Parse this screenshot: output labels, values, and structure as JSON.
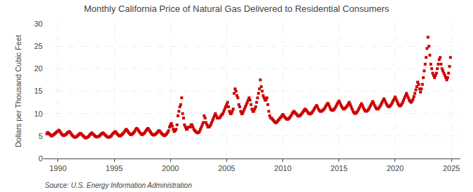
{
  "chart_data": {
    "type": "scatter",
    "title": "Monthly California Price of Natural Gas Delivered to Residential Consumers",
    "ylabel": "Dollars per Thousand Cubic Feet",
    "annotations": [
      "Source: U.S. Energy Information Administration"
    ],
    "color": "#cc0000",
    "marker": "square",
    "grid": true,
    "xlim": [
      1988.7,
      2025.8
    ],
    "ylim": [
      0,
      30
    ],
    "xticks": [
      1990,
      1995,
      2000,
      2005,
      2010,
      2015,
      2020,
      2025
    ],
    "yticks": [
      0,
      5,
      10,
      15,
      20,
      25,
      30
    ],
    "x": [
      1989.0,
      1989.083,
      1989.167,
      1989.25,
      1989.333,
      1989.417,
      1989.5,
      1989.583,
      1989.667,
      1989.75,
      1989.833,
      1989.917,
      1990.0,
      1990.083,
      1990.167,
      1990.25,
      1990.333,
      1990.417,
      1990.5,
      1990.583,
      1990.667,
      1990.75,
      1990.833,
      1990.917,
      1991.0,
      1991.083,
      1991.167,
      1991.25,
      1991.333,
      1991.417,
      1991.5,
      1991.583,
      1991.667,
      1991.75,
      1991.833,
      1991.917,
      1992.0,
      1992.083,
      1992.167,
      1992.25,
      1992.333,
      1992.417,
      1992.5,
      1992.583,
      1992.667,
      1992.75,
      1992.833,
      1992.917,
      1993.0,
      1993.083,
      1993.167,
      1993.25,
      1993.333,
      1993.417,
      1993.5,
      1993.583,
      1993.667,
      1993.75,
      1993.833,
      1993.917,
      1994.0,
      1994.083,
      1994.167,
      1994.25,
      1994.333,
      1994.417,
      1994.5,
      1994.583,
      1994.667,
      1994.75,
      1994.833,
      1994.917,
      1995.0,
      1995.083,
      1995.167,
      1995.25,
      1995.333,
      1995.417,
      1995.5,
      1995.583,
      1995.667,
      1995.75,
      1995.833,
      1995.917,
      1996.0,
      1996.083,
      1996.167,
      1996.25,
      1996.333,
      1996.417,
      1996.5,
      1996.583,
      1996.667,
      1996.75,
      1996.833,
      1996.917,
      1997.0,
      1997.083,
      1997.167,
      1997.25,
      1997.333,
      1997.417,
      1997.5,
      1997.583,
      1997.667,
      1997.75,
      1997.833,
      1997.917,
      1998.0,
      1998.083,
      1998.167,
      1998.25,
      1998.333,
      1998.417,
      1998.5,
      1998.583,
      1998.667,
      1998.75,
      1998.833,
      1998.917,
      1999.0,
      1999.083,
      1999.167,
      1999.25,
      1999.333,
      1999.417,
      1999.5,
      1999.583,
      1999.667,
      1999.75,
      1999.833,
      1999.917,
      2000.0,
      2000.083,
      2000.167,
      2000.25,
      2000.333,
      2000.417,
      2000.5,
      2000.583,
      2000.667,
      2000.75,
      2000.833,
      2000.917,
      2001.0,
      2001.083,
      2001.167,
      2001.25,
      2001.333,
      2001.417,
      2001.5,
      2001.583,
      2001.667,
      2001.75,
      2001.833,
      2001.917,
      2002.0,
      2002.083,
      2002.167,
      2002.25,
      2002.333,
      2002.417,
      2002.5,
      2002.583,
      2002.667,
      2002.75,
      2002.833,
      2002.917,
      2003.0,
      2003.083,
      2003.167,
      2003.25,
      2003.333,
      2003.417,
      2003.5,
      2003.583,
      2003.667,
      2003.75,
      2003.833,
      2003.917,
      2004.0,
      2004.083,
      2004.167,
      2004.25,
      2004.333,
      2004.417,
      2004.5,
      2004.583,
      2004.667,
      2004.75,
      2004.833,
      2004.917,
      2005.0,
      2005.083,
      2005.167,
      2005.25,
      2005.333,
      2005.417,
      2005.5,
      2005.583,
      2005.667,
      2005.75,
      2005.833,
      2005.917,
      2006.0,
      2006.083,
      2006.167,
      2006.25,
      2006.333,
      2006.417,
      2006.5,
      2006.583,
      2006.667,
      2006.75,
      2006.833,
      2006.917,
      2007.0,
      2007.083,
      2007.167,
      2007.25,
      2007.333,
      2007.417,
      2007.5,
      2007.583,
      2007.667,
      2007.75,
      2007.833,
      2007.917,
      2008.0,
      2008.083,
      2008.167,
      2008.25,
      2008.333,
      2008.417,
      2008.5,
      2008.583,
      2008.667,
      2008.75,
      2008.833,
      2008.917,
      2009.0,
      2009.083,
      2009.167,
      2009.25,
      2009.333,
      2009.417,
      2009.5,
      2009.583,
      2009.667,
      2009.75,
      2009.833,
      2009.917,
      2010.0,
      2010.083,
      2010.167,
      2010.25,
      2010.333,
      2010.417,
      2010.5,
      2010.583,
      2010.667,
      2010.75,
      2010.833,
      2010.917,
      2011.0,
      2011.083,
      2011.167,
      2011.25,
      2011.333,
      2011.417,
      2011.5,
      2011.583,
      2011.667,
      2011.75,
      2011.833,
      2011.917,
      2012.0,
      2012.083,
      2012.167,
      2012.25,
      2012.333,
      2012.417,
      2012.5,
      2012.583,
      2012.667,
      2012.75,
      2012.833,
      2012.917,
      2013.0,
      2013.083,
      2013.167,
      2013.25,
      2013.333,
      2013.417,
      2013.5,
      2013.583,
      2013.667,
      2013.75,
      2013.833,
      2013.917,
      2014.0,
      2014.083,
      2014.167,
      2014.25,
      2014.333,
      2014.417,
      2014.5,
      2014.583,
      2014.667,
      2014.75,
      2014.833,
      2014.917,
      2015.0,
      2015.083,
      2015.167,
      2015.25,
      2015.333,
      2015.417,
      2015.5,
      2015.583,
      2015.667,
      2015.75,
      2015.833,
      2015.917,
      2016.0,
      2016.083,
      2016.167,
      2016.25,
      2016.333,
      2016.417,
      2016.5,
      2016.583,
      2016.667,
      2016.75,
      2016.833,
      2016.917,
      2017.0,
      2017.083,
      2017.167,
      2017.25,
      2017.333,
      2017.417,
      2017.5,
      2017.583,
      2017.667,
      2017.75,
      2017.833,
      2017.917,
      2018.0,
      2018.083,
      2018.167,
      2018.25,
      2018.333,
      2018.417,
      2018.5,
      2018.583,
      2018.667,
      2018.75,
      2018.833,
      2018.917,
      2019.0,
      2019.083,
      2019.167,
      2019.25,
      2019.333,
      2019.417,
      2019.5,
      2019.583,
      2019.667,
      2019.75,
      2019.833,
      2019.917,
      2020.0,
      2020.083,
      2020.167,
      2020.25,
      2020.333,
      2020.417,
      2020.5,
      2020.583,
      2020.667,
      2020.75,
      2020.833,
      2020.917,
      2021.0,
      2021.083,
      2021.167,
      2021.25,
      2021.333,
      2021.417,
      2021.5,
      2021.583,
      2021.667,
      2021.75,
      2021.833,
      2021.917,
      2022.0,
      2022.083,
      2022.167,
      2022.25,
      2022.333,
      2022.417,
      2022.5,
      2022.583,
      2022.667,
      2022.75,
      2022.833,
      2022.917,
      2023.0,
      2023.083,
      2023.167,
      2023.25,
      2023.333,
      2023.417,
      2023.5,
      2023.583,
      2023.667,
      2023.75,
      2023.833,
      2023.917,
      2024.0,
      2024.083,
      2024.167,
      2024.25,
      2024.333,
      2024.417,
      2024.5,
      2024.583,
      2024.667,
      2024.75,
      2024.833,
      2024.917
    ],
    "values": [
      5.5,
      5.8,
      5.6,
      5.4,
      5.2,
      5.0,
      5.1,
      5.3,
      5.4,
      5.6,
      5.8,
      6.0,
      6.1,
      6.3,
      6.0,
      5.7,
      5.4,
      5.2,
      5.1,
      5.2,
      5.3,
      5.5,
      5.7,
      5.9,
      6.0,
      5.8,
      5.5,
      5.2,
      5.0,
      4.8,
      4.7,
      4.8,
      4.9,
      5.1,
      5.3,
      5.5,
      5.6,
      5.4,
      5.2,
      5.0,
      4.8,
      4.6,
      4.6,
      4.7,
      4.8,
      5.0,
      5.3,
      5.5,
      5.7,
      5.5,
      5.3,
      5.1,
      4.9,
      4.8,
      4.8,
      4.9,
      5.0,
      5.2,
      5.4,
      5.6,
      5.7,
      5.5,
      5.3,
      5.1,
      4.9,
      4.8,
      4.7,
      4.8,
      4.9,
      5.1,
      5.4,
      5.6,
      5.8,
      6.0,
      5.8,
      5.5,
      5.3,
      5.1,
      5.0,
      5.1,
      5.3,
      5.5,
      5.7,
      6.0,
      6.3,
      6.5,
      6.2,
      5.9,
      5.6,
      5.4,
      5.3,
      5.4,
      5.6,
      5.8,
      6.1,
      6.5,
      6.7,
      6.5,
      6.2,
      5.9,
      5.6,
      5.4,
      5.3,
      5.5,
      5.6,
      5.9,
      6.2,
      6.5,
      6.7,
      6.4,
      6.1,
      5.8,
      5.5,
      5.3,
      5.2,
      5.3,
      5.4,
      5.6,
      5.8,
      6.1,
      6.2,
      6.0,
      5.7,
      5.5,
      5.3,
      5.1,
      5.1,
      5.3,
      5.5,
      5.8,
      6.2,
      7.0,
      7.5,
      7.8,
      7.2,
      6.5,
      6.0,
      6.2,
      6.5,
      7.5,
      9.5,
      10.5,
      11.5,
      12.0,
      13.5,
      10.0,
      9.0,
      7.5,
      7.0,
      6.5,
      6.5,
      7.0,
      7.0,
      7.0,
      7.5,
      7.5,
      7.0,
      6.5,
      6.2,
      6.0,
      5.8,
      5.7,
      5.8,
      6.0,
      6.5,
      7.0,
      7.5,
      8.0,
      9.5,
      9.0,
      8.0,
      7.5,
      7.0,
      7.0,
      7.2,
      7.5,
      8.0,
      8.5,
      9.0,
      9.5,
      10.0,
      9.5,
      9.0,
      9.0,
      9.0,
      9.2,
      9.5,
      9.8,
      10.0,
      10.5,
      11.0,
      11.5,
      12.0,
      12.5,
      11.5,
      10.5,
      10.0,
      10.0,
      10.5,
      11.0,
      14.5,
      15.5,
      15.0,
      14.0,
      13.5,
      12.0,
      11.5,
      10.5,
      10.0,
      10.0,
      10.5,
      11.0,
      11.5,
      12.0,
      12.5,
      13.0,
      13.5,
      13.0,
      12.0,
      11.0,
      10.5,
      10.5,
      11.0,
      11.5,
      12.5,
      13.5,
      14.5,
      15.5,
      17.5,
      16.0,
      15.0,
      14.0,
      13.5,
      13.0,
      13.0,
      13.5,
      12.0,
      10.5,
      9.5,
      9.0,
      9.0,
      8.7,
      8.5,
      8.2,
      8.0,
      8.0,
      8.2,
      8.5,
      8.7,
      9.0,
      9.2,
      9.5,
      9.8,
      9.5,
      9.2,
      9.0,
      8.8,
      8.7,
      8.8,
      9.0,
      9.3,
      9.6,
      10.0,
      10.3,
      10.5,
      10.2,
      10.0,
      9.8,
      9.5,
      9.4,
      9.5,
      9.7,
      9.9,
      10.2,
      10.5,
      10.8,
      11.0,
      10.7,
      10.5,
      10.2,
      10.0,
      9.9,
      10.0,
      10.2,
      10.5,
      10.8,
      11.2,
      11.5,
      11.8,
      11.5,
      11.0,
      10.7,
      10.5,
      10.5,
      10.6,
      10.8,
      11.0,
      11.3,
      11.7,
      12.0,
      12.3,
      12.0,
      11.5,
      11.0,
      10.8,
      10.7,
      10.8,
      11.0,
      11.3,
      11.7,
      12.1,
      12.5,
      12.8,
      12.4,
      11.9,
      11.5,
      11.2,
      11.0,
      11.1,
      11.3,
      11.5,
      11.8,
      12.2,
      12.5,
      12.0,
      11.5,
      11.0,
      10.5,
      10.2,
      10.0,
      10.1,
      10.3,
      10.6,
      11.0,
      11.4,
      11.8,
      12.2,
      11.8,
      11.3,
      10.9,
      10.6,
      10.5,
      10.6,
      10.8,
      11.1,
      11.5,
      11.9,
      12.3,
      12.7,
      12.3,
      11.8,
      11.4,
      11.1,
      11.0,
      11.1,
      11.4,
      11.7,
      12.1,
      12.5,
      12.9,
      13.3,
      12.9,
      12.4,
      12.0,
      11.7,
      11.5,
      11.6,
      11.8,
      12.1,
      12.5,
      12.9,
      13.3,
      13.7,
      13.2,
      12.7,
      12.2,
      11.9,
      11.7,
      11.8,
      12.1,
      12.5,
      13.0,
      13.5,
      14.0,
      14.5,
      14.0,
      13.5,
      13.0,
      12.7,
      12.5,
      12.8,
      13.2,
      13.8,
      14.5,
      15.3,
      16.0,
      17.0,
      16.5,
      15.5,
      14.8,
      15.5,
      16.5,
      18.0,
      19.5,
      21.0,
      22.5,
      24.5,
      27.0,
      25.0,
      23.0,
      21.0,
      20.0,
      19.0,
      18.5,
      18.0,
      18.5,
      19.0,
      20.0,
      21.0,
      22.0,
      22.5,
      21.0,
      20.0,
      19.5,
      19.0,
      18.5,
      18.0,
      17.5,
      18.0,
      19.0,
      20.5,
      22.5
    ]
  }
}
